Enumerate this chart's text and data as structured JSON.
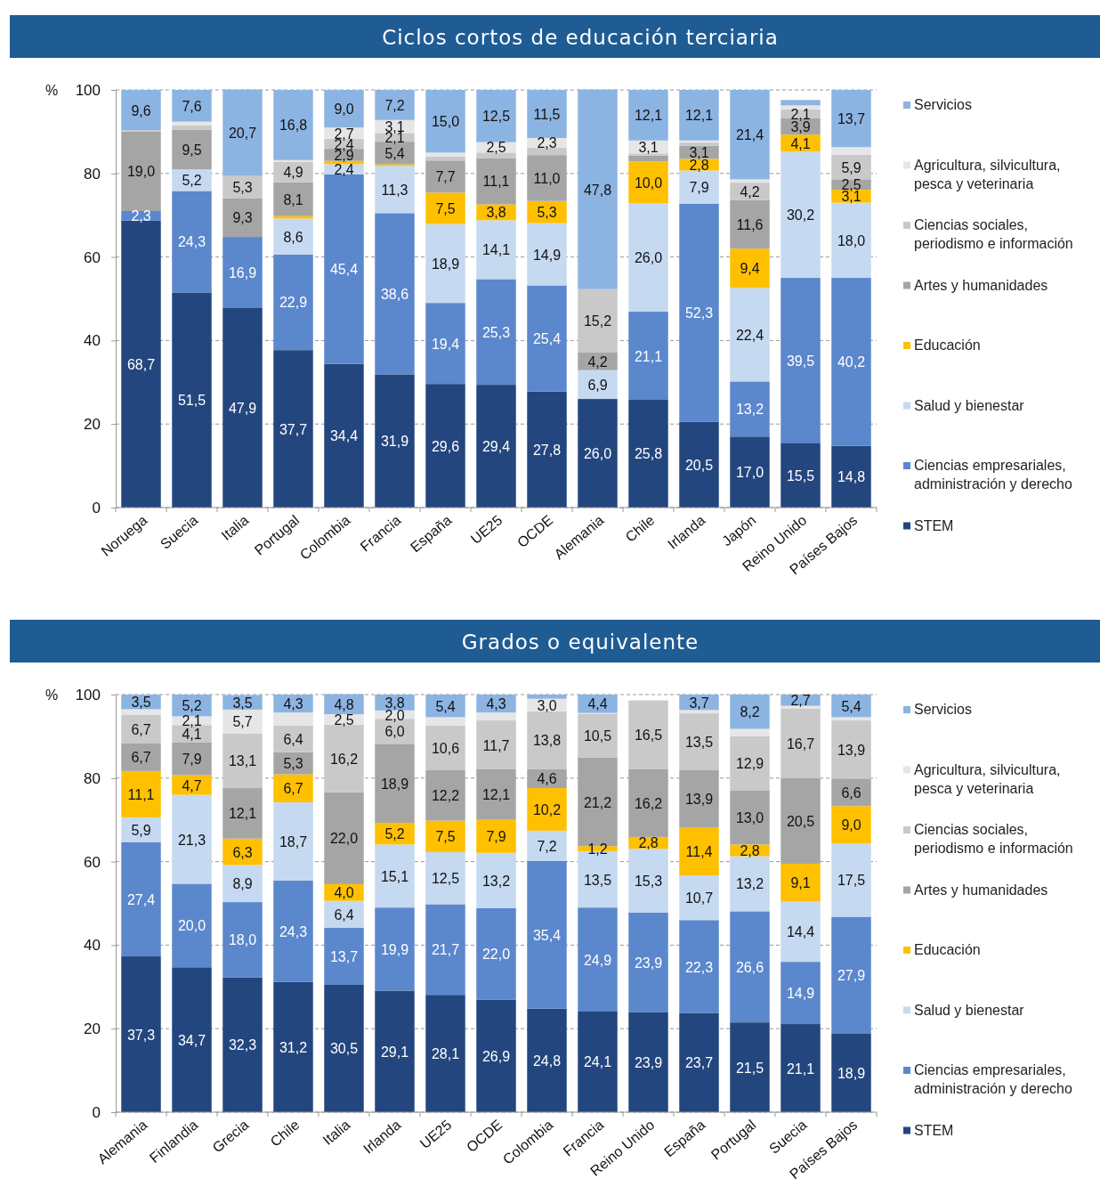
{
  "chart_data": [
    {
      "type": "bar",
      "stacked": true,
      "title": "Ciclos cortos de educación terciaria",
      "ylabel": "%",
      "ylim": [
        0,
        100
      ],
      "yticks": [
        0,
        20,
        40,
        60,
        80,
        100
      ],
      "grid": "y",
      "legend": "right",
      "categories": [
        "Noruega",
        "Suecia",
        "Italia",
        "Portugal",
        "Colombia",
        "Francia",
        "España",
        "UE25",
        "OCDE",
        "Alemania",
        "Chile",
        "Irlanda",
        "Japón",
        "Reino Unido",
        "Países Bajos"
      ],
      "series": [
        {
          "name": "STEM",
          "color": "#23467e",
          "values": [
            68.7,
            51.5,
            47.9,
            37.7,
            34.4,
            31.9,
            29.6,
            29.4,
            27.8,
            26.0,
            25.8,
            20.5,
            17.0,
            15.5,
            14.8
          ],
          "value_labels": [
            "68,7",
            "51,5",
            "47,9",
            "37,7",
            "34,4",
            "31,9",
            "29,6",
            "29,4",
            "27,8",
            "26,0",
            "25,8",
            "20,5",
            "17,0",
            "15,5",
            "14,8"
          ]
        },
        {
          "name": "Ciencias empresariales, administración y derecho",
          "color": "#5b87cc",
          "values": [
            2.3,
            24.3,
            16.9,
            22.9,
            45.4,
            38.6,
            19.4,
            25.3,
            25.4,
            null,
            21.1,
            52.3,
            13.2,
            39.5,
            40.2
          ],
          "value_labels": [
            "2,3",
            "24,3",
            "16,9",
            "22,9",
            "45,4",
            "38,6",
            "19,4",
            "25,3",
            "25,4",
            null,
            "21,1",
            "52,3",
            "13,2",
            "39,5",
            "40,2"
          ]
        },
        {
          "name": "Salud y bienestar",
          "color": "#c5d9f1",
          "values": [
            null,
            5.2,
            null,
            8.6,
            2.4,
            11.3,
            18.9,
            14.1,
            14.9,
            6.9,
            26.0,
            7.9,
            22.4,
            30.2,
            18.0
          ],
          "value_labels": [
            null,
            "5,2",
            null,
            "8,6",
            "2,4",
            "11,3",
            "18,9",
            "14,1",
            "14,9",
            "6,9",
            "26,0",
            "7,9",
            "22,4",
            "30,2",
            "18,0"
          ]
        },
        {
          "name": "Educación",
          "color": "#ffc000",
          "values": [
            null,
            null,
            null,
            0.6,
            0.8,
            0.4,
            7.5,
            3.8,
            5.3,
            null,
            10.0,
            2.8,
            9.4,
            4.1,
            3.1
          ],
          "value_labels": [
            null,
            null,
            null,
            null,
            null,
            null,
            "7,5",
            "3,8",
            "5,3",
            null,
            "10,0",
            "2,8",
            "9,4",
            "4,1",
            "3,1"
          ]
        },
        {
          "name": "Artes y humanidades",
          "color": "#a5a5a5",
          "values": [
            19.0,
            9.5,
            9.3,
            8.1,
            2.9,
            5.4,
            7.7,
            11.1,
            11.0,
            4.2,
            1.4,
            3.1,
            11.6,
            3.9,
            2.5
          ],
          "value_labels": [
            "19,0",
            "9,5",
            "9,3",
            "8,1",
            "2,9",
            "5,4",
            "7,7",
            "11,1",
            "11,0",
            "4,2",
            null,
            "3,1",
            "11,6",
            "3,9",
            "2,5"
          ]
        },
        {
          "name": "Ciencias sociales, periodismo e información",
          "color": "#c9c9c9",
          "values": [
            0.4,
            1.0,
            5.3,
            4.9,
            2.4,
            2.1,
            1.0,
            1.3,
            1.8,
            15.2,
            0.5,
            0.8,
            4.2,
            2.1,
            5.9
          ],
          "value_labels": [
            null,
            null,
            "5,3",
            "4,9",
            "2,4",
            "2,1",
            null,
            null,
            null,
            "15,2",
            null,
            null,
            "4,2",
            "2,1",
            "5,9"
          ]
        },
        {
          "name": "Agricultura, silvicultura, pesca y veterinaria",
          "color": "#e6e6e6",
          "values": [
            null,
            0.9,
            null,
            0.4,
            2.7,
            3.1,
            0.9,
            2.5,
            2.3,
            null,
            3.1,
            0.5,
            0.8,
            1.0,
            1.8
          ],
          "value_labels": [
            null,
            null,
            null,
            null,
            "2,7",
            "3,1",
            null,
            "2,5",
            "2,3",
            null,
            "3,1",
            null,
            null,
            null,
            null
          ]
        },
        {
          "name": "Servicios",
          "color": "#8cb4e2",
          "values": [
            9.6,
            7.6,
            20.7,
            16.8,
            9.0,
            7.2,
            15.0,
            12.5,
            11.5,
            47.8,
            12.1,
            12.1,
            21.4,
            1.3,
            13.7
          ],
          "value_labels": [
            "9,6",
            "7,6",
            "20,7",
            "16,8",
            "9,0",
            "7,2",
            "15,0",
            "12,5",
            "11,5",
            "47,8",
            "12,1",
            "12,1",
            "21,4",
            null,
            "13,7"
          ]
        }
      ]
    },
    {
      "type": "bar",
      "stacked": true,
      "title": "Grados o equivalente",
      "ylabel": "%",
      "ylim": [
        0,
        100
      ],
      "yticks": [
        0,
        20,
        40,
        60,
        80,
        100
      ],
      "grid": "y",
      "legend": "right",
      "categories": [
        "Alemania",
        "Finlandia",
        "Grecia",
        "Chile",
        "Italia",
        "Irlanda",
        "UE25",
        "OCDE",
        "Colombia",
        "Francia",
        "Reino Unido",
        "España",
        "Portugal",
        "Suecia",
        "Países Bajos"
      ],
      "series": [
        {
          "name": "STEM",
          "color": "#23467e",
          "values": [
            37.3,
            34.7,
            32.3,
            31.2,
            30.5,
            29.1,
            28.1,
            26.9,
            24.8,
            24.1,
            23.9,
            23.7,
            21.5,
            21.1,
            18.9
          ],
          "value_labels": [
            "37,3",
            "34,7",
            "32,3",
            "31,2",
            "30,5",
            "29,1",
            "28,1",
            "26,9",
            "24,8",
            "24,1",
            "23,9",
            "23,7",
            "21,5",
            "21,1",
            "18,9"
          ]
        },
        {
          "name": "Ciencias empresariales, administración y derecho",
          "color": "#5b87cc",
          "values": [
            27.4,
            20.0,
            18.0,
            24.3,
            13.7,
            19.9,
            21.7,
            22.0,
            35.4,
            24.9,
            23.9,
            22.3,
            26.6,
            14.9,
            27.9
          ],
          "value_labels": [
            "27,4",
            "20,0",
            "18,0",
            "24,3",
            "13,7",
            "19,9",
            "21,7",
            "22,0",
            "35,4",
            "24,9",
            "23,9",
            "22,3",
            "26,6",
            "14,9",
            "27,9"
          ]
        },
        {
          "name": "Salud y bienestar",
          "color": "#c5d9f1",
          "values": [
            5.9,
            21.3,
            8.9,
            18.7,
            6.4,
            15.1,
            12.5,
            13.2,
            7.2,
            13.5,
            15.3,
            10.7,
            13.2,
            14.4,
            17.5
          ],
          "value_labels": [
            "5,9",
            "21,3",
            "8,9",
            "18,7",
            "6,4",
            "15,1",
            "12,5",
            "13,2",
            "7,2",
            "13,5",
            "15,3",
            "10,7",
            "13,2",
            "14,4",
            "17,5"
          ]
        },
        {
          "name": "Educación",
          "color": "#ffc000",
          "values": [
            11.1,
            4.7,
            6.3,
            6.7,
            4.0,
            5.2,
            7.5,
            7.9,
            10.2,
            1.2,
            2.8,
            11.4,
            2.8,
            9.1,
            9.0
          ],
          "value_labels": [
            "11,1",
            "4,7",
            "6,3",
            "6,7",
            "4,0",
            "5,2",
            "7,5",
            "7,9",
            "10,2",
            "1,2",
            "2,8",
            "11,4",
            "2,8",
            "9,1",
            "9,0"
          ]
        },
        {
          "name": "Artes y humanidades",
          "color": "#a5a5a5",
          "values": [
            6.7,
            7.9,
            12.1,
            5.3,
            22.0,
            18.9,
            12.2,
            12.1,
            4.6,
            21.2,
            16.2,
            13.9,
            13.0,
            20.5,
            6.6
          ],
          "value_labels": [
            "6,7",
            "7,9",
            "12,1",
            "5,3",
            "22,0",
            "18,9",
            "12,2",
            "12,1",
            "4,6",
            "21,2",
            "16,2",
            "13,9",
            "13,0",
            "20,5",
            "6,6"
          ]
        },
        {
          "name": "Ciencias sociales, periodismo e información",
          "color": "#c9c9c9",
          "values": [
            6.7,
            4.1,
            13.1,
            6.4,
            16.2,
            6.0,
            10.6,
            11.7,
            13.8,
            10.5,
            16.5,
            13.5,
            12.9,
            16.7,
            13.9
          ],
          "value_labels": [
            "6,7",
            "4,1",
            "13,1",
            "6,4",
            "16,2",
            "6,0",
            "10,6",
            "11,7",
            "13,8",
            "10,5",
            "16,5",
            "13,5",
            "12,9",
            "16,7",
            "13,9"
          ]
        },
        {
          "name": "Agricultura, silvicultura, pesca y veterinaria",
          "color": "#e6e6e6",
          "values": [
            1.4,
            2.1,
            5.7,
            3.1,
            2.5,
            2.0,
            2.0,
            1.9,
            3.0,
            0.2,
            null,
            0.8,
            1.8,
            0.6,
            0.8
          ],
          "value_labels": [
            null,
            "2,1",
            "5,7",
            null,
            "2,5",
            "2,0",
            null,
            null,
            "3,0",
            null,
            null,
            null,
            null,
            null,
            null
          ]
        },
        {
          "name": "Servicios",
          "color": "#8cb4e2",
          "values": [
            3.5,
            5.2,
            3.5,
            4.3,
            4.8,
            3.8,
            5.4,
            4.3,
            1.0,
            4.4,
            null,
            3.7,
            8.2,
            2.7,
            5.4
          ],
          "value_labels": [
            "3,5",
            "5,2",
            "3,5",
            "4,3",
            "4,8",
            "3,8",
            "5,4",
            "4,3",
            null,
            "4,4",
            null,
            "3,7",
            "8,2",
            "2,7",
            "5,4"
          ]
        }
      ]
    }
  ]
}
